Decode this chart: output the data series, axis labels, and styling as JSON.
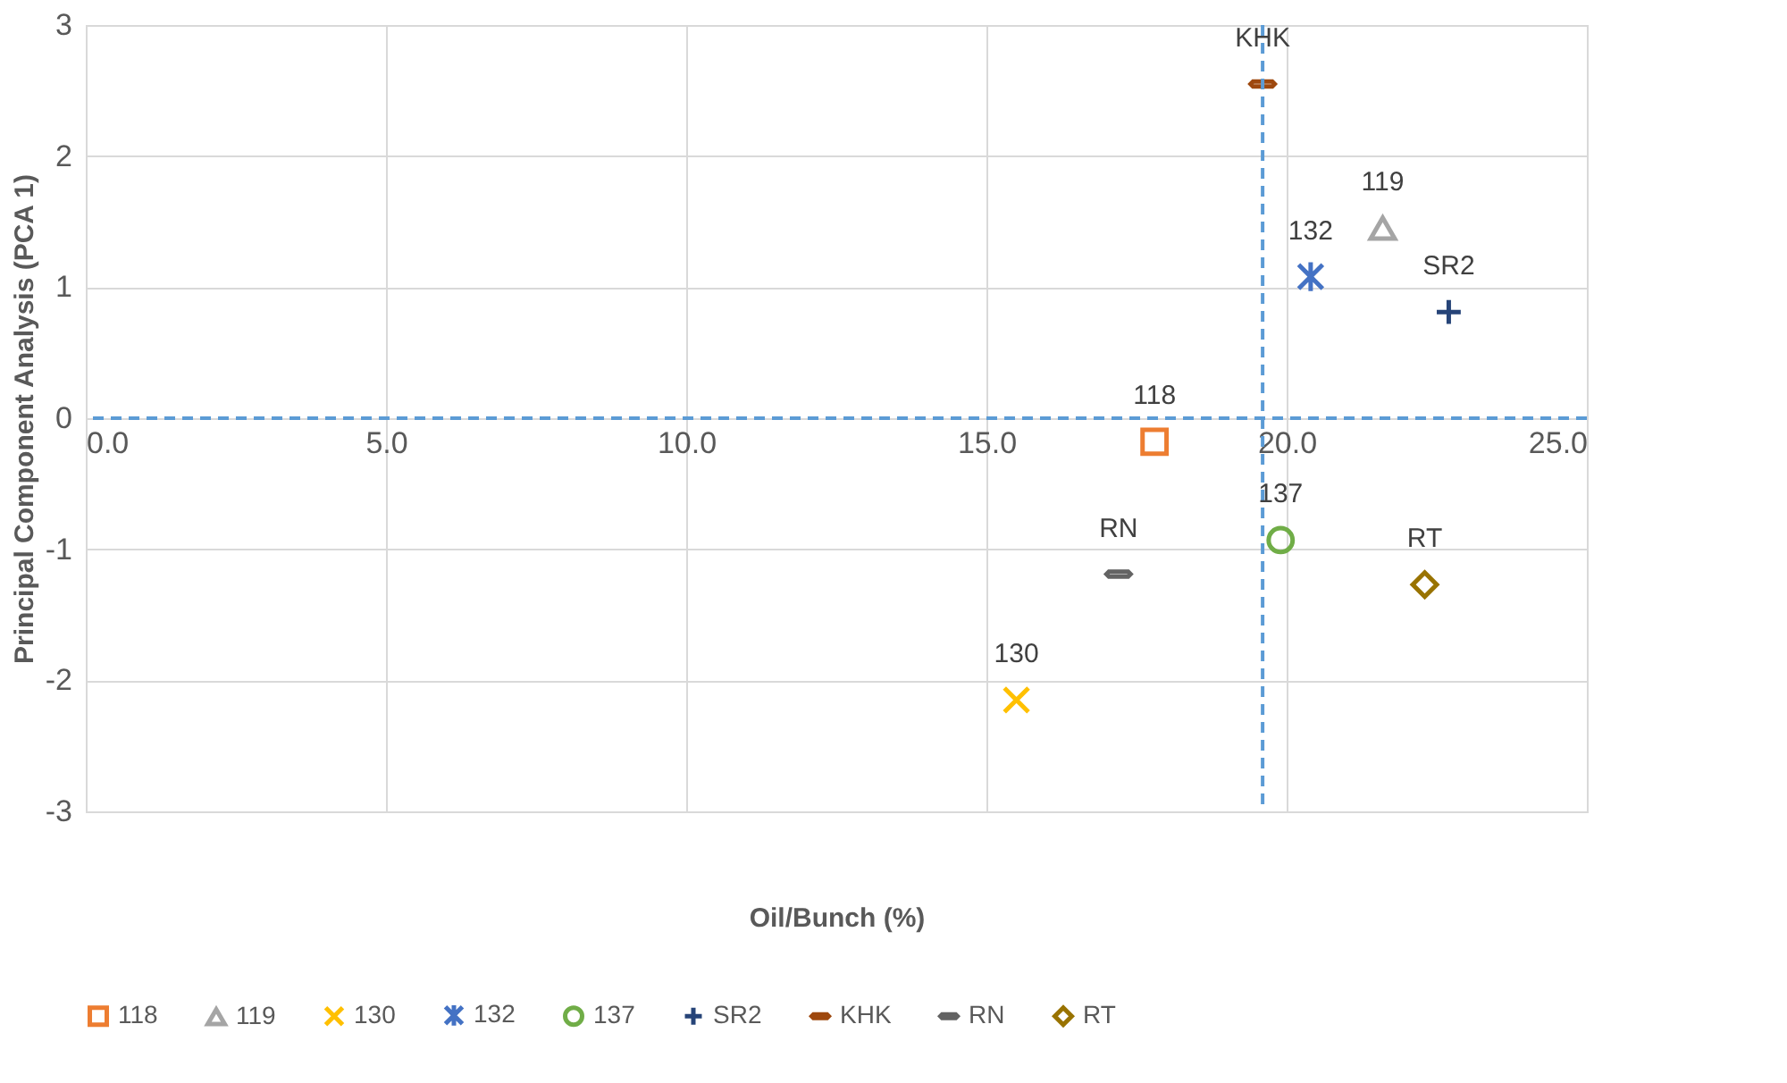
{
  "chart_data": {
    "type": "scatter",
    "xlabel": "Oil/Bunch (%)",
    "ylabel": "Principal  Component  Analysis (PCA 1)",
    "xlim": [
      0,
      25
    ],
    "xticks": [
      {
        "value": 0,
        "label": "0.0"
      },
      {
        "value": 5,
        "label": "5.0"
      },
      {
        "value": 10,
        "label": "10.0"
      },
      {
        "value": 15,
        "label": "15.0"
      },
      {
        "value": 20,
        "label": "20.0"
      },
      {
        "value": 25,
        "label": "25.0"
      }
    ],
    "ylim": [
      -3,
      3
    ],
    "yticks": [
      {
        "value": -3,
        "label": "-3"
      },
      {
        "value": -2,
        "label": "-2"
      },
      {
        "value": -1,
        "label": "-1"
      },
      {
        "value": 0,
        "label": "0"
      },
      {
        "value": 1,
        "label": "1"
      },
      {
        "value": 2,
        "label": "2"
      },
      {
        "value": 3,
        "label": "3"
      }
    ],
    "grid": true,
    "legend": "bottom",
    "ref_lines": [
      {
        "axis": "y",
        "value": 0,
        "color": "#5b9bd5",
        "line_style": "dashed"
      },
      {
        "axis": "x",
        "value": 19.6,
        "color": "#5b9bd5",
        "line_style": "dashed"
      }
    ],
    "series": [
      {
        "name": "118",
        "color": "#ed7d31",
        "marker": "square",
        "x": [
          17.8
        ],
        "values": [
          -0.18
        ]
      },
      {
        "name": "119",
        "color": "#a5a5a5",
        "marker": "triangle",
        "x": [
          21.6
        ],
        "values": [
          1.45
        ]
      },
      {
        "name": "130",
        "color": "#ffc000",
        "marker": "cross",
        "x": [
          15.5
        ],
        "values": [
          -2.15
        ]
      },
      {
        "name": "132",
        "color": "#4472c4",
        "marker": "cross",
        "x": [
          20.4
        ],
        "values": [
          1.08
        ]
      },
      {
        "name": "137",
        "color": "#70ad47",
        "marker": "circle",
        "x": [
          19.9
        ],
        "values": [
          -0.93
        ]
      },
      {
        "name": "SR2",
        "color": "#264478",
        "marker": "cross",
        "x": [
          22.7
        ],
        "values": [
          0.81
        ]
      },
      {
        "name": "KHK",
        "color": "#9e480e",
        "x": [
          19.6
        ],
        "values": [
          2.55
        ]
      },
      {
        "name": "RN",
        "color": "#636363",
        "x": [
          17.2
        ],
        "values": [
          -1.19
        ]
      },
      {
        "name": "RT",
        "color": "#997300",
        "marker": "diamond",
        "x": [
          22.3
        ],
        "values": [
          -1.27
        ]
      }
    ]
  }
}
